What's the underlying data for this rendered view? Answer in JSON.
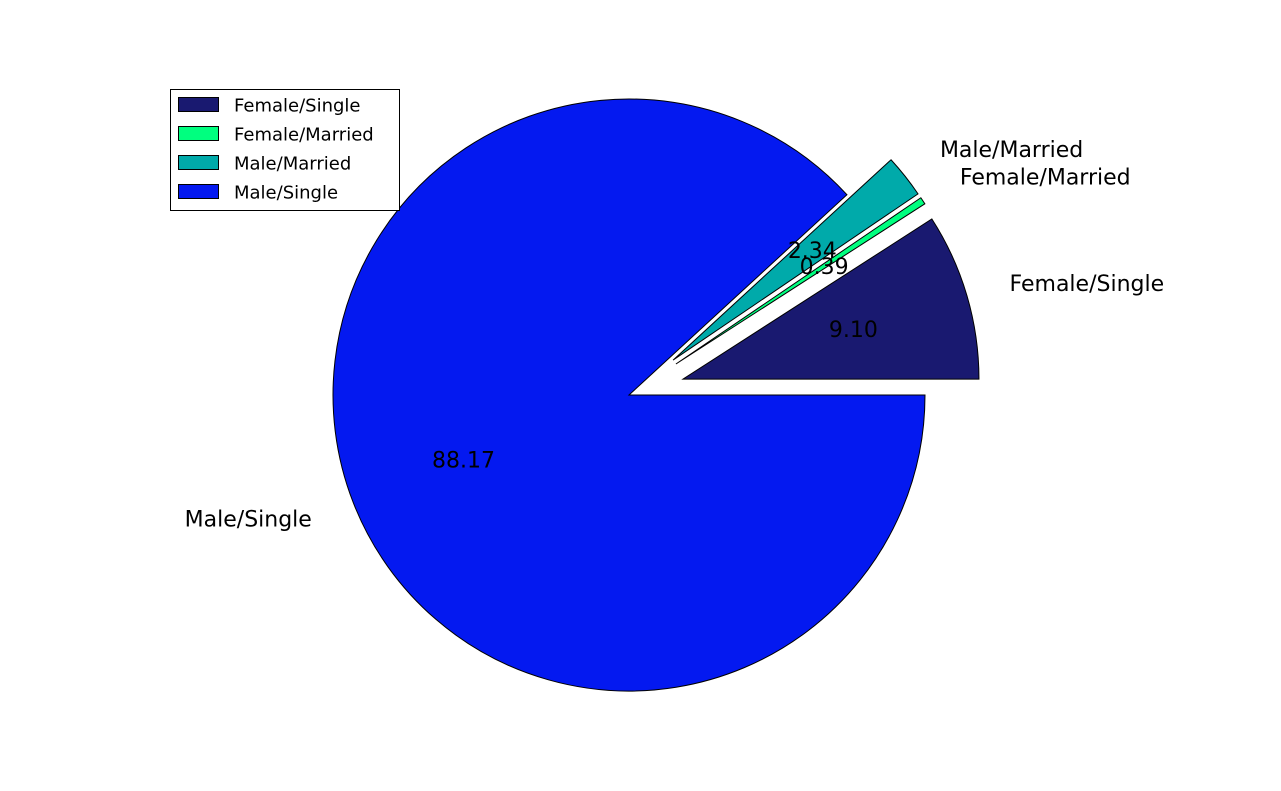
{
  "chart_data": {
    "type": "pie",
    "title": "",
    "legend_position": "upper-left",
    "start_angle_deg": 0,
    "direction": "counterclockwise",
    "slices": [
      {
        "label": "Female/Single",
        "value": 9.1,
        "pct_label": "9.10",
        "color": "#191970",
        "exploded": true
      },
      {
        "label": "Female/Married",
        "value": 0.39,
        "pct_label": "0.39",
        "color": "#00ff7f",
        "exploded": true
      },
      {
        "label": "Male/Married",
        "value": 2.34,
        "pct_label": "2.34",
        "color": "#00aaaa",
        "exploded": true
      },
      {
        "label": "Male/Single",
        "value": 88.17,
        "pct_label": "88.17",
        "color": "#0419f0",
        "exploded": false
      }
    ],
    "legend": [
      "Female/Single",
      "Female/Married",
      "Male/Married",
      "Male/Single"
    ]
  }
}
